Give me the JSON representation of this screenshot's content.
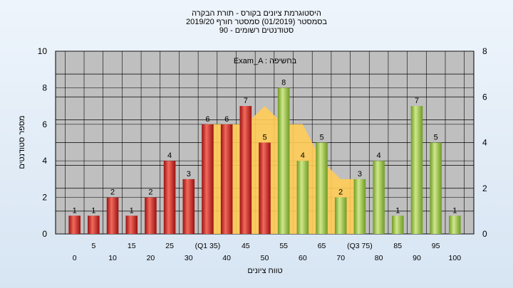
{
  "chart_data": {
    "type": "bar",
    "title_lines": [
      "היסטוגרמת ציונים בקורס - תורת הבקרה",
      "בסמסטר  (01/2019)  סמסטר חורף 2019/20",
      "סטודנטים רשומים - 90"
    ],
    "xlabel": "טווח ציונים",
    "ylabel": "מספר סטודנטים",
    "annotation": "Exam_A : בחשיפה",
    "ylim": [
      0,
      10
    ],
    "y_ticks": [
      "0",
      "2",
      "4",
      "6",
      "8",
      "10"
    ],
    "y2lim": [
      0,
      8
    ],
    "y2_ticks": [
      "0",
      "2",
      "4",
      "6",
      "8"
    ],
    "grid": true,
    "categories": [
      "0",
      "5",
      "10",
      "15",
      "20",
      "25",
      "30",
      "(Q1 35)",
      "40",
      "45",
      "50",
      "55",
      "60",
      "65",
      "70",
      "(Q3 75)",
      "80",
      "85",
      "90",
      "95",
      "100"
    ],
    "values": [
      1,
      1,
      2,
      1,
      2,
      4,
      3,
      6,
      6,
      7,
      5,
      8,
      4,
      5,
      2,
      3,
      4,
      1,
      7,
      5,
      1
    ],
    "bar_colors": [
      "red",
      "red",
      "red",
      "red",
      "red",
      "red",
      "red",
      "red",
      "red",
      "red",
      "red",
      "green",
      "green",
      "green",
      "green",
      "green",
      "green",
      "green",
      "green",
      "green",
      "green"
    ],
    "area_series": {
      "x_index": [
        7,
        8,
        9,
        10,
        11,
        12,
        13,
        14,
        15
      ],
      "values": [
        6,
        6,
        6,
        7,
        6,
        6,
        4,
        3,
        3
      ]
    },
    "colors": {
      "red_bar": "#d21e1e",
      "green_bar": "#8fbe3a",
      "area_fill": "#ffcc55",
      "plot_bg": "#bfbfbf",
      "grid": "#000000"
    }
  }
}
